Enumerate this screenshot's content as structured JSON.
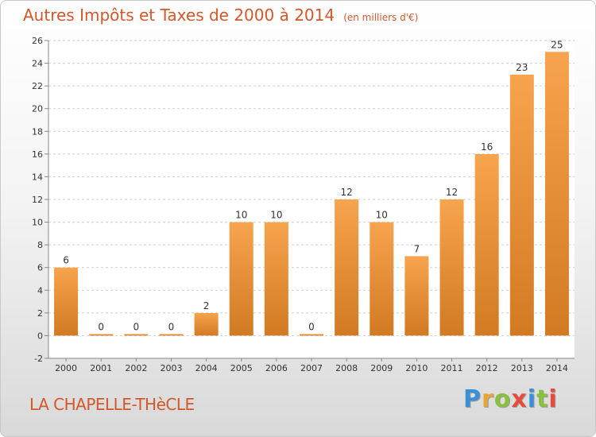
{
  "title": "Autres Impôts et Taxes de 2000 à 2014",
  "subtitle": "(en milliers d'€)",
  "commune": "LA CHAPELLE-THèCLE",
  "brand": {
    "text": "Proxiti",
    "letter_colors": [
      "#3a8fd6",
      "#e8a53b",
      "#8bbf3e",
      "#e64c3c",
      "#3a8fd6",
      "#8bbf3e",
      "#e64c3c"
    ]
  },
  "colors": {
    "bar_light": "#f7a44e",
    "bar_dark": "#d17a22",
    "title": "#d4572a",
    "axis_text": "#333333",
    "grid": "#cfcfcf"
  },
  "chart_data": {
    "type": "bar",
    "categories": [
      "2000",
      "2001",
      "2002",
      "2003",
      "2004",
      "2005",
      "2006",
      "2007",
      "2008",
      "2009",
      "2010",
      "2011",
      "2012",
      "2013",
      "2014"
    ],
    "values": [
      6,
      0,
      0,
      0,
      2,
      10,
      10,
      0,
      12,
      10,
      7,
      12,
      16,
      23,
      25
    ],
    "data_labels": [
      "6",
      "0",
      "0",
      "0",
      "2",
      "10",
      "10",
      "0",
      "12",
      "10",
      "7",
      "12",
      "16",
      "23",
      "25"
    ],
    "ylim": [
      -2,
      26
    ],
    "yticks": [
      -2,
      0,
      2,
      4,
      6,
      8,
      10,
      12,
      14,
      16,
      18,
      20,
      22,
      24,
      26
    ],
    "grid": "horizontal dashed",
    "legend": "none"
  }
}
